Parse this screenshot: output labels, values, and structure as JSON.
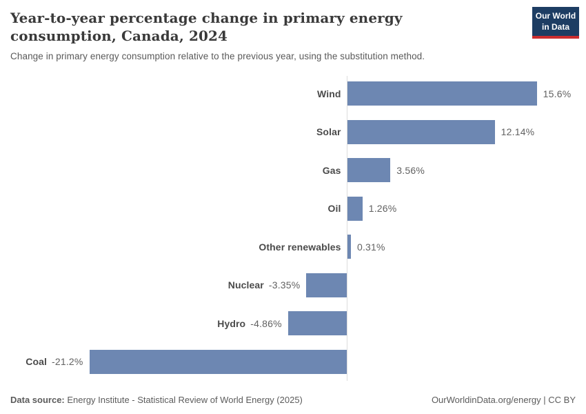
{
  "header": {
    "title": "Year-to-year percentage change in primary energy consumption, Canada, 2024",
    "subtitle": "Change in primary energy consumption relative to the previous year, using the substitution method.",
    "logo": {
      "line1": "Our World",
      "line2": "in Data"
    }
  },
  "chart_data": {
    "type": "bar",
    "orientation": "horizontal",
    "title": "Year-to-year percentage change in primary energy consumption, Canada, 2024",
    "subtitle": "Change in primary energy consumption relative to the previous year, using the substitution method.",
    "categories": [
      "Wind",
      "Solar",
      "Gas",
      "Oil",
      "Other renewables",
      "Nuclear",
      "Hydro",
      "Coal"
    ],
    "values": [
      15.6,
      12.14,
      3.56,
      1.26,
      0.31,
      -3.35,
      -4.86,
      -21.2
    ],
    "value_labels": [
      "15.6%",
      "12.14%",
      "3.56%",
      "1.26%",
      "0.31%",
      "-3.35%",
      "-4.86%",
      "-21.2%"
    ],
    "unit": "%",
    "xlim": [
      -21.2,
      15.6
    ],
    "grid": false,
    "legend": false,
    "xlabel": "",
    "ylabel": ""
  },
  "footer": {
    "source_label": "Data source:",
    "source_text": " Energy Institute - Statistical Review of World Energy (2025)",
    "credit": "OurWorldinData.org/energy | CC BY"
  },
  "colors": {
    "bar": "#6d87b2",
    "axis": "#dcdcdc",
    "logo-bg": "#1d3d63",
    "logo-red": "#cb2d2f",
    "title-text": "#3a3a3a",
    "subtitle-text": "#595959"
  }
}
